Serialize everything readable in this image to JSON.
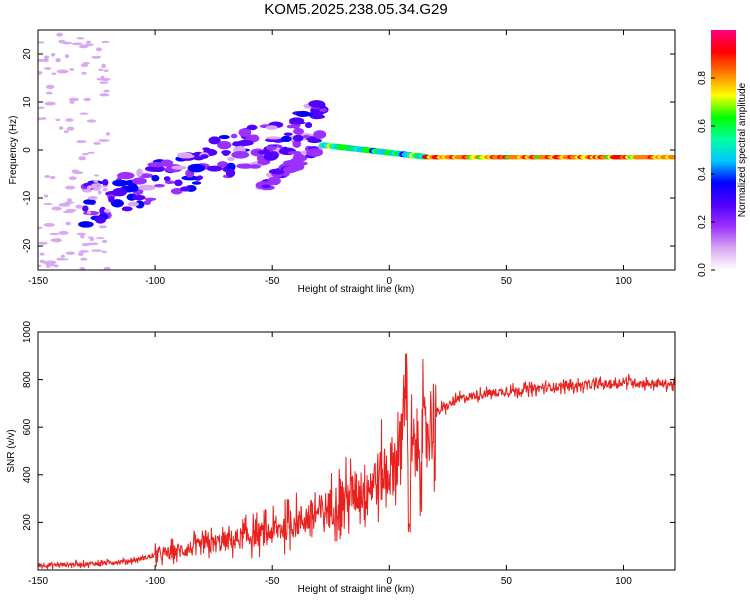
{
  "title": "KOM5.2025.238.05.34.G29",
  "chart_data": [
    {
      "type": "heatmap",
      "name": "spectrogram",
      "xlabel": "Height of straight line (km)",
      "ylabel": "Frequency (Hz)",
      "xlim": [
        -150,
        122
      ],
      "ylim": [
        -25,
        25
      ],
      "xticks": [
        -150,
        -100,
        -50,
        0,
        50,
        100
      ],
      "yticks": [
        -20,
        -10,
        0,
        10,
        20
      ],
      "colorbar": {
        "label": "Normalized spectral amplitude",
        "range": [
          0.0,
          1.0
        ],
        "ticks": [
          "0.0",
          "0.2",
          "0.4",
          "0.6",
          "0.8"
        ],
        "colors": [
          "#ffffff",
          "#d8a8f0",
          "#9b30ff",
          "#5000ff",
          "#0000ff",
          "#00c8ff",
          "#00ffa0",
          "#00ff00",
          "#ffff00",
          "#ff8000",
          "#ff0000",
          "#ff0080"
        ]
      },
      "features": [
        {
          "name": "bright line",
          "x_start": -28,
          "x_end": 122,
          "freq_start": 1.0,
          "freq_end": -1.5,
          "amplitude": 0.9
        },
        {
          "name": "ascending band",
          "x_start": -130,
          "x_end": -28,
          "freq_start": -12,
          "freq_end": 6,
          "amplitude": 0.3
        },
        {
          "name": "branch",
          "x_start": -55,
          "x_end": -30,
          "freq_start": -8,
          "freq_end": 1,
          "amplitude": 0.25
        },
        {
          "name": "left noise",
          "x_start": -150,
          "x_end": -120,
          "freq_start": -25,
          "freq_end": 25,
          "amplitude": 0.1
        }
      ]
    },
    {
      "type": "line",
      "name": "snr",
      "xlabel": "Height of straight line (km)",
      "ylabel": "SNR (v/v)",
      "xlim": [
        -150,
        122
      ],
      "ylim": [
        0,
        1000
      ],
      "xticks": [
        -150,
        -100,
        -50,
        0,
        50,
        100
      ],
      "yticks": [
        200,
        400,
        600,
        800,
        1000
      ],
      "color": "#e8201e",
      "x": [
        -150,
        -140,
        -130,
        -120,
        -110,
        -100,
        -90,
        -80,
        -70,
        -60,
        -50,
        -40,
        -30,
        -20,
        -10,
        0,
        5,
        7,
        8,
        10,
        15,
        20,
        30,
        40,
        50,
        60,
        70,
        80,
        90,
        95,
        100,
        110,
        122
      ],
      "values": [
        20,
        22,
        25,
        30,
        40,
        60,
        80,
        100,
        120,
        140,
        160,
        200,
        240,
        290,
        350,
        420,
        500,
        700,
        450,
        500,
        570,
        660,
        720,
        740,
        750,
        760,
        770,
        775,
        780,
        780,
        790,
        785,
        780
      ]
    }
  ]
}
